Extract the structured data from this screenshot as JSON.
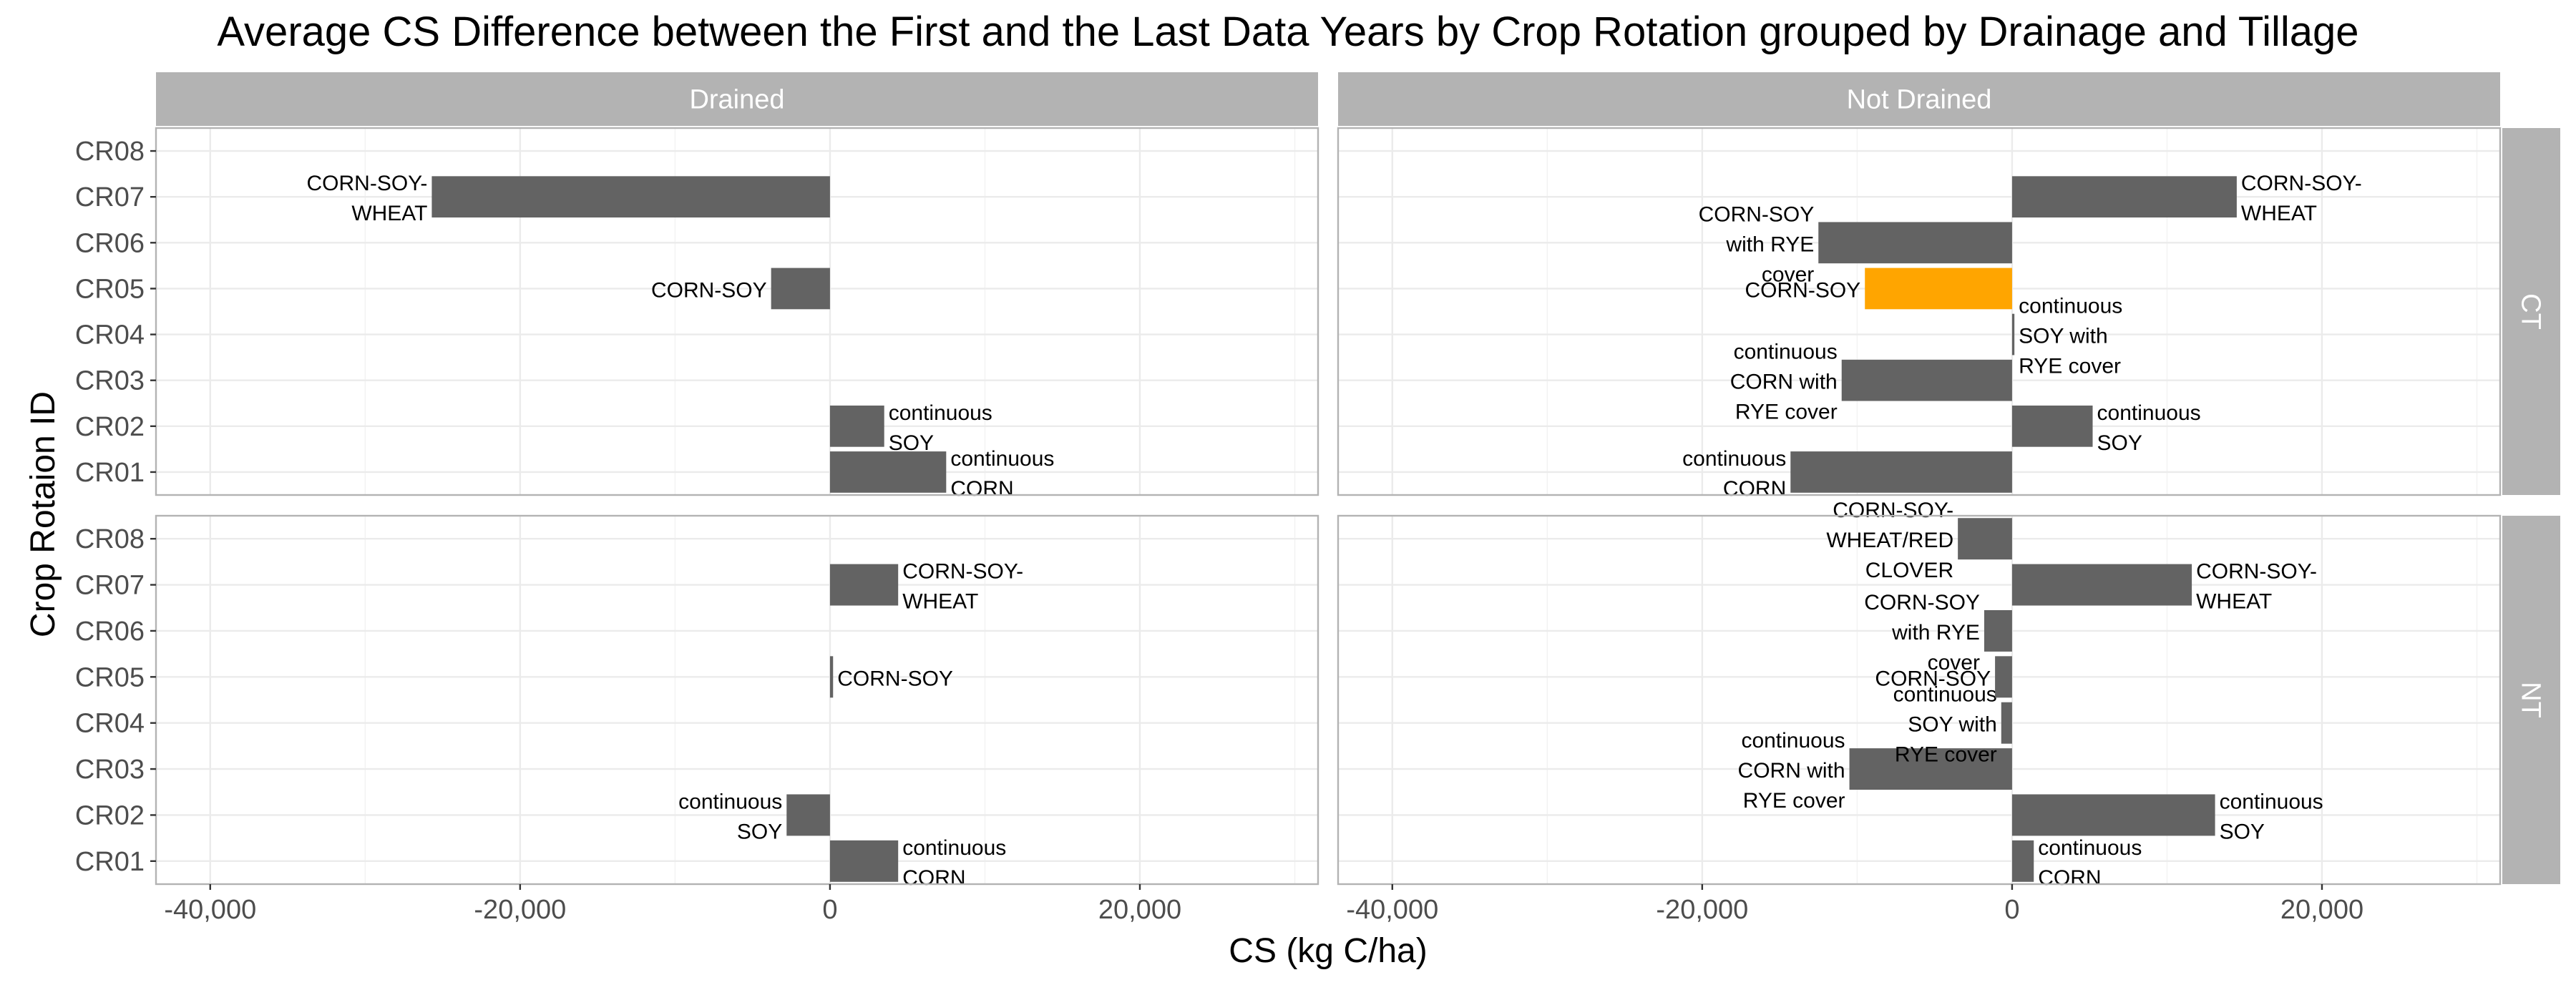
{
  "chart_data": {
    "type": "bar",
    "orientation": "horizontal",
    "title": "Average CS Difference between the First and the Last Data Years by Crop Rotation grouped by Drainage and Tillage",
    "xlabel": "CS (kg C/ha)",
    "ylabel": "Crop Rotaion ID",
    "xlim": [
      -43500,
      31500
    ],
    "x_ticks": [
      -40000,
      -20000,
      0,
      20000
    ],
    "x_tick_labels": [
      "-40,000",
      "-20,000",
      "0",
      "20,000"
    ],
    "categories": [
      "CR01",
      "CR02",
      "CR03",
      "CR04",
      "CR05",
      "CR06",
      "CR07",
      "CR08"
    ],
    "facet_columns": [
      "Drained",
      "Not Drained"
    ],
    "facet_rows": [
      "CT",
      "NT"
    ],
    "grid": true,
    "legend": "none",
    "colors": {
      "bar": "#636363",
      "highlight": "#ffa500",
      "strip": "#b3b3b3",
      "grid": "#ebebeb",
      "border": "#b3b3b3"
    },
    "panels": [
      {
        "col": "Drained",
        "row": "CT",
        "bars": [
          {
            "id": "CR01",
            "value": 7500,
            "label": "continuous\nCORN"
          },
          {
            "id": "CR02",
            "value": 3500,
            "label": "continuous\nSOY"
          },
          {
            "id": "CR05",
            "value": -3800,
            "label": "CORN-SOY"
          },
          {
            "id": "CR07",
            "value": -25700,
            "label": "CORN-SOY-\nWHEAT"
          }
        ]
      },
      {
        "col": "Not Drained",
        "row": "CT",
        "bars": [
          {
            "id": "CR01",
            "value": -14300,
            "label": "continuous\nCORN"
          },
          {
            "id": "CR02",
            "value": 5200,
            "label": "continuous\nSOY"
          },
          {
            "id": "CR03",
            "value": -11000,
            "label": "continuous\nCORN with\nRYE cover"
          },
          {
            "id": "CR04",
            "value": 150,
            "label": "continuous\nSOY with\nRYE cover"
          },
          {
            "id": "CR05",
            "value": -9500,
            "label": "CORN-SOY",
            "highlight": true
          },
          {
            "id": "CR06",
            "value": -12500,
            "label": "CORN-SOY\nwith RYE\ncover"
          },
          {
            "id": "CR07",
            "value": 14500,
            "label": "CORN-SOY-\nWHEAT"
          }
        ]
      },
      {
        "col": "Drained",
        "row": "NT",
        "bars": [
          {
            "id": "CR01",
            "value": 4400,
            "label": "continuous\nCORN"
          },
          {
            "id": "CR02",
            "value": -2800,
            "label": "continuous\nSOY"
          },
          {
            "id": "CR05",
            "value": 200,
            "label": "CORN-SOY"
          },
          {
            "id": "CR07",
            "value": 4400,
            "label": "CORN-SOY-\nWHEAT"
          }
        ]
      },
      {
        "col": "Not Drained",
        "row": "NT",
        "bars": [
          {
            "id": "CR01",
            "value": 1400,
            "label": "continuous\nCORN"
          },
          {
            "id": "CR02",
            "value": 13100,
            "label": "continuous\nSOY"
          },
          {
            "id": "CR03",
            "value": -10500,
            "label": "continuous\nCORN with\nRYE cover"
          },
          {
            "id": "CR04",
            "value": -700,
            "label": "continuous\nSOY with\nRYE cover"
          },
          {
            "id": "CR05",
            "value": -1100,
            "label": "CORN-SOY"
          },
          {
            "id": "CR06",
            "value": -1800,
            "label": "CORN-SOY\nwith RYE\ncover"
          },
          {
            "id": "CR07",
            "value": 11600,
            "label": "CORN-SOY-\nWHEAT"
          },
          {
            "id": "CR08",
            "value": -3500,
            "label": "CORN-SOY-\nWHEAT/RED\nCLOVER"
          }
        ]
      }
    ]
  }
}
